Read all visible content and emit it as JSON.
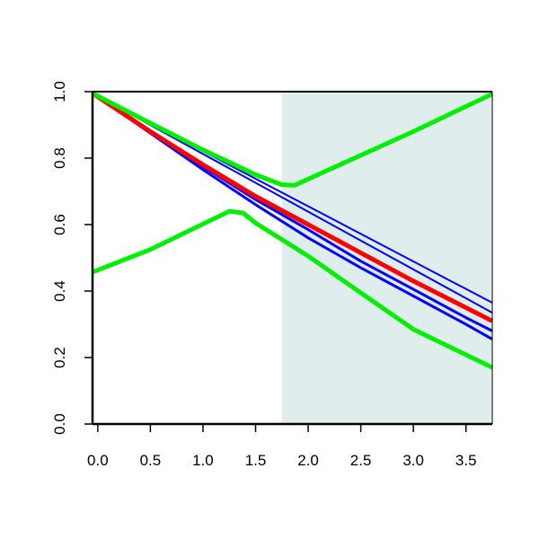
{
  "chart_data": {
    "type": "line",
    "title": "",
    "xlabel": "",
    "ylabel": "",
    "xlim": [
      -0.05,
      3.75
    ],
    "ylim": [
      0.0,
      1.0
    ],
    "x_ticks": [
      {
        "value": 0.0,
        "label": "0.0"
      },
      {
        "value": 0.5,
        "label": "0.5"
      },
      {
        "value": 1.0,
        "label": "1.0"
      },
      {
        "value": 1.5,
        "label": "1.5"
      },
      {
        "value": 2.0,
        "label": "2.0"
      },
      {
        "value": 2.5,
        "label": "2.5"
      },
      {
        "value": 3.0,
        "label": "3.0"
      },
      {
        "value": 3.5,
        "label": "3.5"
      }
    ],
    "y_ticks": [
      {
        "value": 0.0,
        "label": "0.0"
      },
      {
        "value": 0.2,
        "label": "0.2"
      },
      {
        "value": 0.4,
        "label": "0.4"
      },
      {
        "value": 0.6,
        "label": "0.6"
      },
      {
        "value": 0.8,
        "label": "0.8"
      },
      {
        "value": 1.0,
        "label": "1.0"
      }
    ],
    "grid": false,
    "legend": "none",
    "shaded_region": {
      "x_from": 1.75,
      "x_to": 3.75,
      "color": "#e0eded"
    },
    "series": [
      {
        "color": "#0000ff",
        "width": "thin",
        "x": [
          -0.05,
          3.75
        ],
        "y": [
          0.995,
          0.365
        ]
      },
      {
        "color": "#0000ff",
        "width": "thin",
        "x": [
          -0.05,
          3.75
        ],
        "y": [
          0.995,
          0.335
        ]
      },
      {
        "color": "#0000ff",
        "width": "medium",
        "x": [
          -0.05,
          0.5,
          1.0,
          1.5,
          2.0,
          2.5,
          3.0,
          3.5,
          3.75
        ],
        "y": [
          0.995,
          0.88,
          0.775,
          0.675,
          0.585,
          0.49,
          0.405,
          0.32,
          0.28
        ]
      },
      {
        "color": "#0000ff",
        "width": "medium",
        "x": [
          -0.05,
          0.5,
          1.0,
          1.5,
          2.0,
          2.5,
          3.0,
          3.5,
          3.75
        ],
        "y": [
          0.995,
          0.875,
          0.765,
          0.66,
          0.56,
          0.47,
          0.385,
          0.3,
          0.255
        ]
      },
      {
        "color": "#ff0000",
        "width": "thick",
        "x": [
          -0.05,
          0.5,
          1.0,
          1.5,
          2.0,
          2.5,
          3.0,
          3.5,
          3.75
        ],
        "y": [
          0.995,
          0.88,
          0.78,
          0.685,
          0.6,
          0.515,
          0.43,
          0.35,
          0.31
        ]
      },
      {
        "color": "#00ee00",
        "width": "thick",
        "x": [
          -0.05,
          0.5,
          1.0,
          1.5,
          1.75,
          1.87,
          3.0,
          3.75
        ],
        "y": [
          0.995,
          0.905,
          0.825,
          0.75,
          0.72,
          0.718,
          0.88,
          0.993
        ]
      },
      {
        "color": "#00ee00",
        "width": "thick",
        "x": [
          -0.05,
          0.5,
          1.25,
          1.38,
          1.5,
          2.0,
          2.5,
          3.0,
          3.75
        ],
        "y": [
          0.457,
          0.525,
          0.64,
          0.635,
          0.605,
          0.505,
          0.395,
          0.285,
          0.17
        ]
      }
    ]
  }
}
